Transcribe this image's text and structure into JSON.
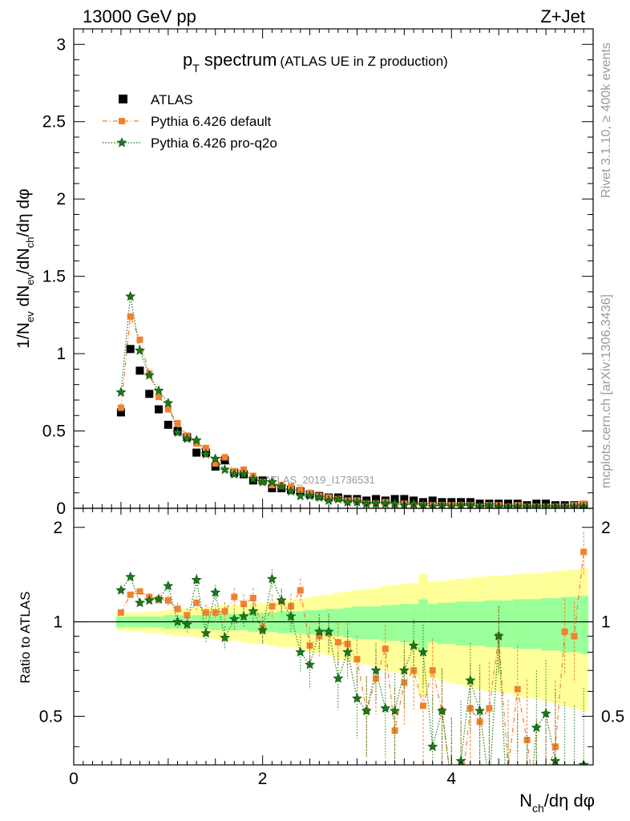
{
  "header": {
    "left": "13000 GeV pp",
    "right": "Z+Jet"
  },
  "side_labels": {
    "rivet": "Rivet 3.1.10, ≥ 400k events",
    "mcplots": "mcplots.cern.ch [arXiv:1306.3436]"
  },
  "watermark": "ATLAS_2019_I1736531",
  "colors": {
    "data": "#000000",
    "default": "#f0822e",
    "proq2o": "#1a7a1a",
    "band_outer": "#ffff99",
    "band_inner": "#99ff99"
  },
  "chart_data": [
    {
      "type": "scatter",
      "title_main": "p",
      "title_sub": "T",
      "title_rest": " spectrum",
      "title_paren": "(ATLAS UE in Z production)",
      "ylabel": "1/N_ev dN_ev/dN_ch/dη dφ",
      "ylabel_parts": {
        "a": "1/N",
        "b": "ev",
        "c": " dN",
        "d": "ev",
        "e": "/dN",
        "f": "ch",
        "g": "/dη dφ"
      },
      "xlim": [
        0,
        5.5
      ],
      "ylim": [
        0,
        3.1
      ],
      "yticks": [
        "0",
        "0.5",
        "1",
        "1.5",
        "2",
        "2.5",
        "3"
      ],
      "ytick_values": [
        0,
        0.5,
        1,
        1.5,
        2,
        2.5,
        3
      ],
      "x": [
        0.5,
        0.6,
        0.7,
        0.8,
        0.9,
        1.0,
        1.1,
        1.2,
        1.3,
        1.4,
        1.5,
        1.6,
        1.7,
        1.8,
        1.9,
        2.0,
        2.1,
        2.2,
        2.3,
        2.4,
        2.5,
        2.6,
        2.7,
        2.8,
        2.9,
        3.0,
        3.1,
        3.2,
        3.3,
        3.4,
        3.5,
        3.6,
        3.7,
        3.8,
        3.9,
        4.0,
        4.1,
        4.2,
        4.3,
        4.4,
        4.5,
        4.6,
        4.7,
        4.8,
        4.9,
        5.0,
        5.1,
        5.2,
        5.3,
        5.4
      ],
      "legend": [
        {
          "label": "ATLAS",
          "series": "data"
        },
        {
          "label": "Pythia 6.426 default",
          "series": "default"
        },
        {
          "label": "Pythia 6.426 pro-q2o",
          "series": "proq2o"
        }
      ],
      "series": [
        {
          "name": "ATLAS",
          "key": "data",
          "values": [
            0.62,
            1.03,
            0.89,
            0.74,
            0.64,
            0.54,
            0.5,
            0.46,
            0.36,
            0.36,
            0.27,
            0.31,
            0.23,
            0.22,
            0.18,
            0.18,
            0.13,
            0.13,
            0.12,
            0.11,
            0.09,
            0.08,
            0.07,
            0.07,
            0.06,
            0.06,
            0.05,
            0.06,
            0.05,
            0.06,
            0.06,
            0.05,
            0.04,
            0.05,
            0.04,
            0.04,
            0.04,
            0.04,
            0.03,
            0.03,
            0.03,
            0.03,
            0.03,
            0.02,
            0.03,
            0.03,
            0.02,
            0.02,
            0.02,
            0.02
          ]
        },
        {
          "name": "Pythia 6.426 default",
          "key": "default",
          "values": [
            0.65,
            1.24,
            1.09,
            0.87,
            0.72,
            0.64,
            0.55,
            0.47,
            0.42,
            0.39,
            0.29,
            0.33,
            0.24,
            0.25,
            0.21,
            0.17,
            0.15,
            0.15,
            0.14,
            0.12,
            0.1,
            0.08,
            0.07,
            0.06,
            0.05,
            0.05,
            0.03,
            0.03,
            0.04,
            0.02,
            0.03,
            0.02,
            0.02,
            0.02,
            0.02,
            0.02,
            0.02,
            0.02,
            0.01,
            0.02,
            0.02,
            0.01,
            0.02,
            0.01,
            0.01,
            0.01,
            0.01,
            0.01,
            0.02,
            0.03
          ]
        },
        {
          "name": "Pythia 6.426 pro-q2o",
          "key": "proq2o",
          "values": [
            0.75,
            1.37,
            1.02,
            0.86,
            0.76,
            0.68,
            0.49,
            0.45,
            0.44,
            0.35,
            0.32,
            0.25,
            0.22,
            0.22,
            0.19,
            0.17,
            0.17,
            0.14,
            0.11,
            0.08,
            0.08,
            0.07,
            0.05,
            0.06,
            0.04,
            0.04,
            0.03,
            0.03,
            0.03,
            0.03,
            0.02,
            0.03,
            0.02,
            0.01,
            0.02,
            0.01,
            0.02,
            0.02,
            0.01,
            0.02,
            0.01,
            0.01,
            0.01,
            0.01,
            0.01,
            0.01,
            0.01,
            0.01,
            0.01,
            0.01
          ]
        }
      ]
    },
    {
      "type": "line",
      "ylabel": "Ratio to ATLAS",
      "xlabel": "N_ch/dη dφ",
      "xlabel_parts": {
        "a": "N",
        "b": "ch",
        "c": "/dη dφ"
      },
      "xlim": [
        0,
        5.5
      ],
      "ylim": [
        0.35,
        2.3
      ],
      "yticks": [
        "0.5",
        "1",
        "2"
      ],
      "ytick_values": [
        0.5,
        1,
        2
      ],
      "xticks": [
        "0",
        "2",
        "4"
      ],
      "xtick_values": [
        0,
        2,
        4
      ],
      "x": [
        0.5,
        0.6,
        0.7,
        0.8,
        0.9,
        1.0,
        1.1,
        1.2,
        1.3,
        1.4,
        1.5,
        1.6,
        1.7,
        1.8,
        1.9,
        2.0,
        2.1,
        2.2,
        2.3,
        2.4,
        2.5,
        2.6,
        2.7,
        2.8,
        2.9,
        3.0,
        3.1,
        3.2,
        3.3,
        3.4,
        3.5,
        3.6,
        3.7,
        3.8,
        3.9,
        4.0,
        4.1,
        4.2,
        4.3,
        4.4,
        4.5,
        4.6,
        4.7,
        4.8,
        4.9,
        5.0,
        5.1,
        5.2,
        5.3,
        5.4
      ],
      "band_inner": [
        0.04,
        0.04,
        0.04,
        0.04,
        0.04,
        0.05,
        0.05,
        0.05,
        0.05,
        0.05,
        0.06,
        0.06,
        0.06,
        0.06,
        0.07,
        0.07,
        0.07,
        0.08,
        0.08,
        0.08,
        0.09,
        0.09,
        0.1,
        0.1,
        0.11,
        0.12,
        0.12,
        0.12,
        0.13,
        0.13,
        0.14,
        0.14,
        0.18,
        0.14,
        0.15,
        0.15,
        0.16,
        0.16,
        0.16,
        0.17,
        0.17,
        0.17,
        0.18,
        0.18,
        0.18,
        0.19,
        0.19,
        0.2,
        0.2,
        0.21
      ],
      "band_outer": [
        0.06,
        0.07,
        0.07,
        0.08,
        0.08,
        0.09,
        0.1,
        0.1,
        0.11,
        0.11,
        0.12,
        0.13,
        0.13,
        0.14,
        0.15,
        0.15,
        0.16,
        0.17,
        0.17,
        0.18,
        0.2,
        0.21,
        0.22,
        0.24,
        0.25,
        0.26,
        0.27,
        0.28,
        0.3,
        0.31,
        0.32,
        0.33,
        0.42,
        0.34,
        0.35,
        0.36,
        0.37,
        0.38,
        0.39,
        0.4,
        0.4,
        0.41,
        0.42,
        0.43,
        0.43,
        0.44,
        0.45,
        0.46,
        0.47,
        0.48
      ],
      "series": [
        {
          "name": "Pythia 6.426 default",
          "key": "default",
          "values": [
            1.07,
            1.22,
            1.25,
            1.2,
            1.18,
            1.17,
            1.1,
            1.05,
            1.15,
            1.07,
            1.07,
            1.08,
            1.2,
            1.14,
            1.19,
            0.95,
            1.12,
            1.16,
            1.12,
            1.26,
            0.84,
            0.9,
            0.92,
            0.86,
            0.85,
            0.76,
            0.52,
            0.66,
            0.82,
            0.45,
            0.64,
            0.7,
            0.54,
            0.7,
            0.52,
            0.3,
            0.28,
            0.53,
            0.48,
            0.53,
            0.9,
            0.34,
            0.61,
            0.42,
            0.25,
            0.32,
            0.4,
            0.93,
            0.9,
            1.67
          ]
        },
        {
          "name": "Pythia 6.426 pro-q2o",
          "key": "proq2o",
          "values": [
            1.26,
            1.39,
            1.15,
            1.17,
            1.18,
            1.3,
            1.0,
            0.98,
            1.36,
            0.92,
            1.24,
            0.89,
            1.02,
            1.04,
            1.08,
            0.94,
            1.37,
            1.17,
            1.04,
            0.8,
            0.73,
            0.93,
            0.93,
            0.66,
            0.8,
            0.57,
            0.52,
            0.7,
            0.53,
            0.52,
            0.7,
            0.84,
            0.8,
            0.4,
            0.52,
            0.3,
            0.36,
            0.65,
            0.52,
            0.3,
            0.9,
            0.22,
            0.28,
            0.2,
            0.46,
            0.51,
            0.36,
            0.3,
            0.28,
            0.35
          ]
        }
      ]
    }
  ]
}
